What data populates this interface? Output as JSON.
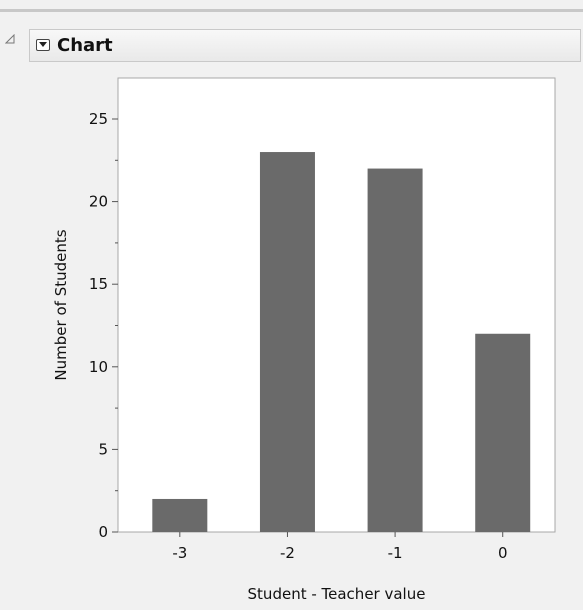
{
  "panel": {
    "title": "Chart",
    "menu_icon": "dropdown-triangle-icon",
    "outline_icon": "disclosure-triangle-icon"
  },
  "chart_data": {
    "type": "bar",
    "categories": [
      "-3",
      "-2",
      "-1",
      "0"
    ],
    "values": [
      2,
      23,
      22,
      12
    ],
    "xlabel": "Student - Teacher value",
    "ylabel": "Number of Students",
    "ylim": [
      0,
      25
    ],
    "y_ticks": [
      0,
      5,
      10,
      15,
      20,
      25
    ],
    "y_tick_labels": [
      "0",
      "5",
      "10",
      "15",
      "20",
      "25"
    ],
    "bar_color": "#6a6a6a",
    "grid": false,
    "legend": "none"
  }
}
